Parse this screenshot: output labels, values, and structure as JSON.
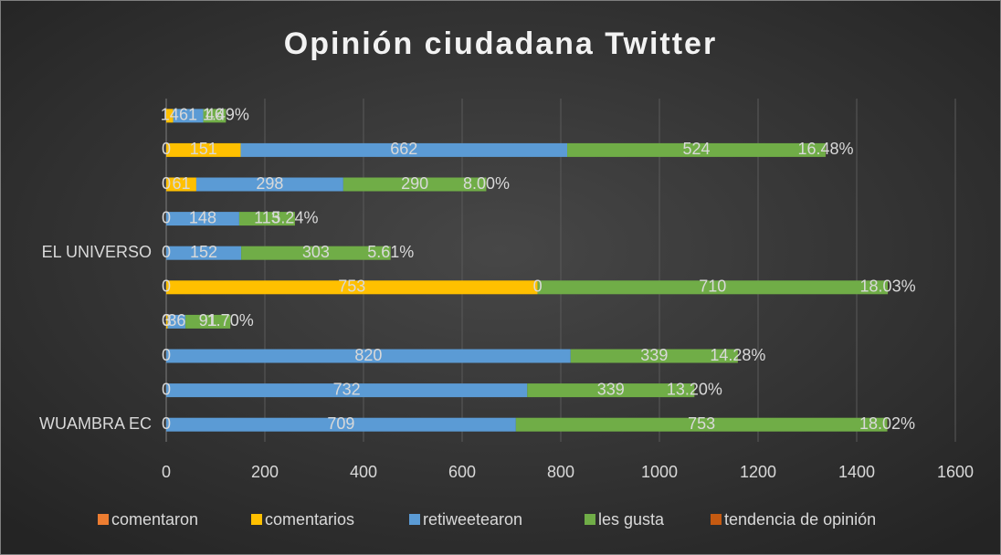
{
  "chart_data": {
    "type": "stacked_bar_horizontal",
    "title": "Opinión ciudadana Twitter",
    "categories": [
      "WUAMBRA EC",
      null,
      null,
      null,
      null,
      "EL UNIVERSO",
      null,
      null,
      null,
      null
    ],
    "series": [
      {
        "name": "comentaron",
        "color": "#ed7d31",
        "values": [
          0,
          0,
          0,
          0,
          0,
          0,
          0,
          0,
          0,
          null
        ]
      },
      {
        "name": "comentarios",
        "color": "#ffc000",
        "values": [
          null,
          null,
          null,
          3,
          753,
          null,
          null,
          61,
          151,
          14
        ]
      },
      {
        "name": "retiweetearon",
        "color": "#5b9bd5",
        "values": [
          709,
          732,
          820,
          36,
          0,
          152,
          148,
          298,
          662,
          61
        ]
      },
      {
        "name": "les gusta",
        "color": "#70ad47",
        "values": [
          753,
          339,
          339,
          91,
          710,
          303,
          113,
          290,
          524,
          46
        ]
      },
      {
        "name": "tendencia de opinión",
        "color": "#c55a11",
        "values": [
          0.1802,
          0.132,
          0.1428,
          0.017,
          0.1803,
          0.0561,
          0.0524,
          0.08,
          0.1648,
          0.0149
        ],
        "value_labels": [
          "18.02%",
          "13.20%",
          "14.28%",
          "1.70%",
          "18.03%",
          "5.61%",
          "5.24%",
          "8.00%",
          "16.48%",
          "1.49%"
        ]
      }
    ],
    "xlim": [
      0,
      1600
    ],
    "xticks": [
      0,
      200,
      400,
      600,
      800,
      1000,
      1200,
      1400,
      1600
    ],
    "grid": true,
    "legend": "bottom"
  }
}
